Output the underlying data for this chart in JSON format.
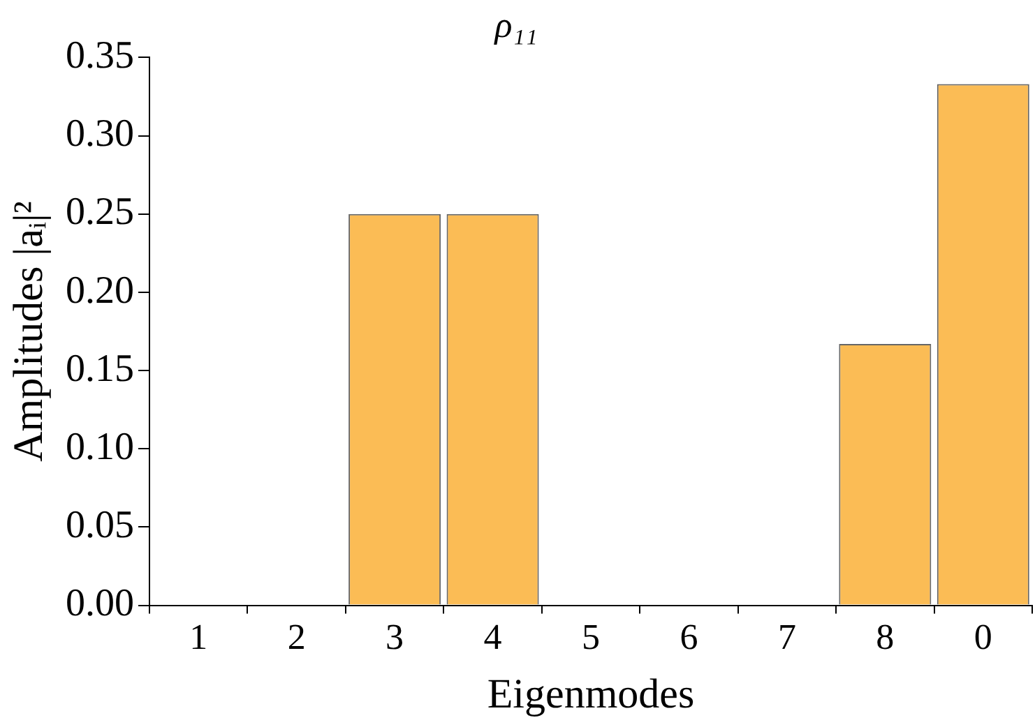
{
  "chart_data": {
    "type": "bar",
    "title": "ρ₁₁",
    "xlabel": "Eigenmodes",
    "ylabel": "Amplitudes |aᵢ|²",
    "categories": [
      "1",
      "2",
      "3",
      "4",
      "5",
      "6",
      "7",
      "8",
      "0"
    ],
    "values": [
      0,
      0,
      0.25,
      0.25,
      0,
      0,
      0,
      0.167,
      0.333
    ],
    "color": "#fbbc55",
    "ylim": [
      0,
      0.35
    ],
    "yticks": [
      {
        "value": 0,
        "label": "0.00"
      },
      {
        "value": 0.05,
        "label": "0.05"
      },
      {
        "value": 0.1,
        "label": "0.10"
      },
      {
        "value": 0.15,
        "label": "0.15"
      },
      {
        "value": 0.2,
        "label": "0.20"
      },
      {
        "value": 0.25,
        "label": "0.25"
      },
      {
        "value": 0.3,
        "label": "0.30"
      },
      {
        "value": 0.35,
        "label": "0.35"
      }
    ],
    "grid": false,
    "legend": false
  }
}
